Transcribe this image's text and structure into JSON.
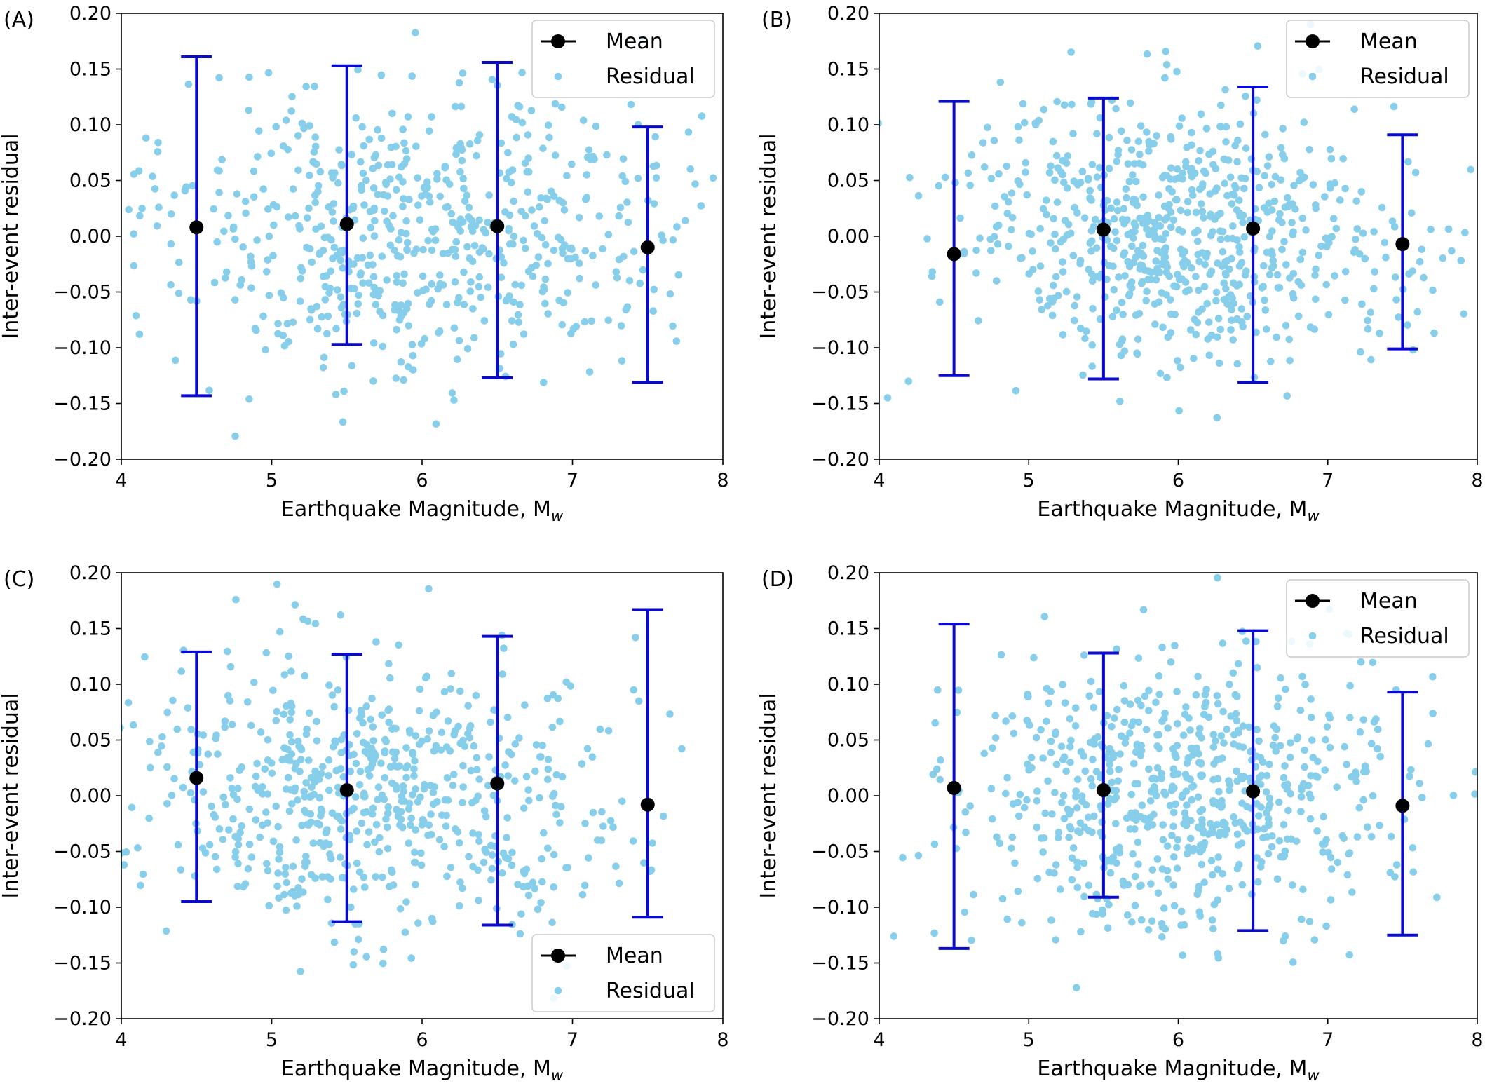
{
  "figure": {
    "colors": {
      "residual": "#87ceeb",
      "mean": "#000000",
      "errorbar": "#0a0acd",
      "axes": "#000000"
    }
  },
  "chart_data": [
    {
      "type": "scatter",
      "panel_label": "(A)",
      "xlabel": "Earthquake Magnitude, M",
      "xlabel_sub": "w",
      "ylabel": "Inter-event residual",
      "xlim": [
        4,
        8
      ],
      "ylim": [
        -0.2,
        0.2
      ],
      "xticks": [
        "4",
        "5",
        "6",
        "7",
        "8"
      ],
      "yticks": [
        "−0.20",
        "−0.15",
        "−0.10",
        "−0.05",
        "0.00",
        "0.05",
        "0.10",
        "0.15",
        "0.20"
      ],
      "legend": {
        "position": "top-right",
        "entries": [
          "Mean",
          "Residual"
        ]
      },
      "mean_series": {
        "name": "Mean",
        "x": [
          4.5,
          5.5,
          6.5,
          7.5
        ],
        "y": [
          0.008,
          0.011,
          0.009,
          -0.01
        ],
        "upper": [
          0.161,
          0.153,
          0.156,
          0.098
        ],
        "lower": [
          -0.143,
          -0.097,
          -0.127,
          -0.131
        ]
      },
      "residual_series": {
        "name": "Residual",
        "count": 620,
        "center_x": 5.95,
        "spread_x": 0.85,
        "sd": 0.063,
        "seed": 11
      }
    },
    {
      "type": "scatter",
      "panel_label": "(B)",
      "xlabel": "Earthquake Magnitude, M",
      "xlabel_sub": "w",
      "ylabel": "Inter-event residual",
      "xlim": [
        4,
        8
      ],
      "ylim": [
        -0.2,
        0.2
      ],
      "xticks": [
        "4",
        "5",
        "6",
        "7",
        "8"
      ],
      "yticks": [
        "−0.20",
        "−0.15",
        "−0.10",
        "−0.05",
        "0.00",
        "0.05",
        "0.10",
        "0.15",
        "0.20"
      ],
      "legend": {
        "position": "top-right",
        "entries": [
          "Mean",
          "Residual"
        ]
      },
      "mean_series": {
        "name": "Mean",
        "x": [
          4.5,
          5.5,
          6.5,
          7.5
        ],
        "y": [
          -0.016,
          0.006,
          0.007,
          -0.007
        ],
        "upper": [
          0.121,
          0.124,
          0.134,
          0.091
        ],
        "lower": [
          -0.125,
          -0.128,
          -0.131,
          -0.101
        ]
      },
      "residual_series": {
        "name": "Residual",
        "count": 720,
        "center_x": 6.0,
        "spread_x": 0.7,
        "sd": 0.058,
        "seed": 23
      }
    },
    {
      "type": "scatter",
      "panel_label": "(C)",
      "xlabel": "Earthquake Magnitude, M",
      "xlabel_sub": "w",
      "ylabel": "Inter-event residual",
      "xlim": [
        4,
        8
      ],
      "ylim": [
        -0.2,
        0.2
      ],
      "xticks": [
        "4",
        "5",
        "6",
        "7",
        "8"
      ],
      "yticks": [
        "−0.20",
        "−0.15",
        "−0.10",
        "−0.05",
        "0.00",
        "0.05",
        "0.10",
        "0.15",
        "0.20"
      ],
      "legend": {
        "position": "bottom-right",
        "entries": [
          "Mean",
          "Residual"
        ]
      },
      "mean_series": {
        "name": "Mean",
        "x": [
          4.5,
          5.5,
          6.5,
          7.5
        ],
        "y": [
          0.016,
          0.005,
          0.011,
          -0.008
        ],
        "upper": [
          0.129,
          0.127,
          0.143,
          0.167
        ],
        "lower": [
          -0.095,
          -0.113,
          -0.116,
          -0.109
        ]
      },
      "residual_series": {
        "name": "Residual",
        "count": 650,
        "center_x": 5.7,
        "spread_x": 0.85,
        "sd": 0.062,
        "seed": 37
      }
    },
    {
      "type": "scatter",
      "panel_label": "(D)",
      "xlabel": "Earthquake Magnitude, M",
      "xlabel_sub": "w",
      "ylabel": "Inter-event residual",
      "xlim": [
        4,
        8
      ],
      "ylim": [
        -0.2,
        0.2
      ],
      "xticks": [
        "4",
        "5",
        "6",
        "7",
        "8"
      ],
      "yticks": [
        "−0.20",
        "−0.15",
        "−0.10",
        "−0.05",
        "0.00",
        "0.05",
        "0.10",
        "0.15",
        "0.20"
      ],
      "legend": {
        "position": "top-right",
        "entries": [
          "Mean",
          "Residual"
        ]
      },
      "mean_series": {
        "name": "Mean",
        "x": [
          4.5,
          5.5,
          6.5,
          7.5
        ],
        "y": [
          0.007,
          0.005,
          0.004,
          -0.009
        ],
        "upper": [
          0.154,
          0.128,
          0.148,
          0.093
        ],
        "lower": [
          -0.137,
          -0.091,
          -0.121,
          -0.125
        ]
      },
      "residual_series": {
        "name": "Residual",
        "count": 700,
        "center_x": 6.0,
        "spread_x": 0.75,
        "sd": 0.06,
        "seed": 53
      }
    }
  ]
}
